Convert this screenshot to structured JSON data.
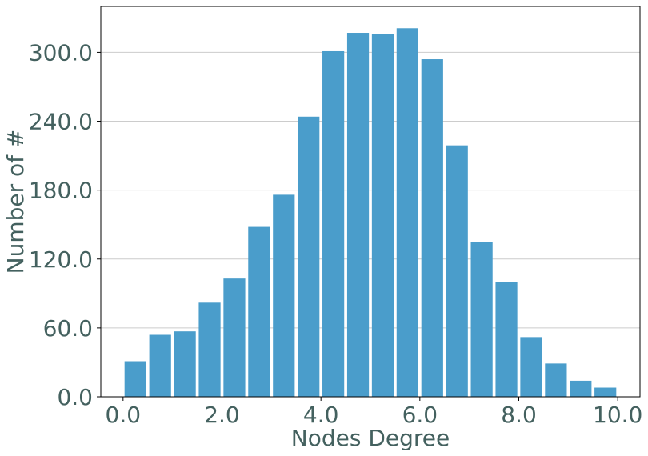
{
  "chart_data": {
    "type": "bar",
    "xlabel": "Nodes Degree",
    "ylabel": "Number of #",
    "xlim": [
      -0.45,
      10.45
    ],
    "ylim": [
      0,
      340
    ],
    "x_ticks": [
      "0.0",
      "2.0",
      "4.0",
      "6.0",
      "8.0",
      "10.0"
    ],
    "y_ticks": [
      "0.0",
      "60.0",
      "120.0",
      "180.0",
      "240.0",
      "300.0"
    ],
    "grid": "horizontal",
    "bar_color": "#4A9DCB",
    "text_color": "#44615F",
    "bin_width": 0.5,
    "bars": [
      {
        "x": 0.25,
        "value": 31
      },
      {
        "x": 0.75,
        "value": 54
      },
      {
        "x": 1.25,
        "value": 57
      },
      {
        "x": 1.75,
        "value": 82
      },
      {
        "x": 2.25,
        "value": 103
      },
      {
        "x": 2.75,
        "value": 148
      },
      {
        "x": 3.25,
        "value": 176
      },
      {
        "x": 3.75,
        "value": 244
      },
      {
        "x": 4.25,
        "value": 301
      },
      {
        "x": 4.75,
        "value": 317
      },
      {
        "x": 5.25,
        "value": 316
      },
      {
        "x": 5.75,
        "value": 321
      },
      {
        "x": 6.25,
        "value": 294
      },
      {
        "x": 6.75,
        "value": 219
      },
      {
        "x": 7.25,
        "value": 135
      },
      {
        "x": 7.75,
        "value": 100
      },
      {
        "x": 8.25,
        "value": 52
      },
      {
        "x": 8.75,
        "value": 29
      },
      {
        "x": 9.25,
        "value": 14
      },
      {
        "x": 9.75,
        "value": 8
      }
    ]
  }
}
